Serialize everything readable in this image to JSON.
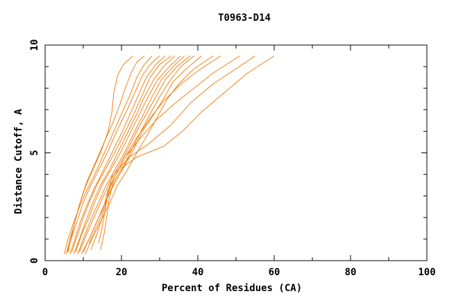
{
  "chart_data": {
    "type": "line",
    "title": "T0963-D14",
    "xlabel": "Percent of Residues (CA)",
    "ylabel": "Distance Cutoff, A",
    "xlim": [
      0,
      100
    ],
    "ylim": [
      0,
      10
    ],
    "x_ticks": [
      0,
      20,
      40,
      60,
      80,
      100
    ],
    "y_ticks": [
      0,
      5,
      10
    ],
    "x_minor_step": 10,
    "y_minor_step": 1,
    "grid": false,
    "legend": "none",
    "line_color": "#ee7600",
    "series": [
      {
        "x": [
          5.0,
          6.0,
          7.5,
          9.0,
          11.0,
          13.0,
          15.5,
          18.0,
          20.5,
          22.5,
          24.0,
          26.0,
          28.0
        ],
        "y": [
          0.3,
          1.0,
          1.8,
          2.5,
          3.3,
          4.0,
          5.0,
          6.0,
          7.0,
          7.8,
          8.5,
          9.1,
          9.5
        ]
      },
      {
        "x": [
          5.8,
          7.0,
          8.5,
          10.0,
          12.0,
          14.0,
          16.5,
          19.0,
          21.5,
          23.5,
          25.5,
          27.5,
          30.0
        ],
        "y": [
          0.4,
          1.1,
          1.9,
          2.7,
          3.5,
          4.2,
          5.1,
          6.1,
          7.0,
          7.8,
          8.6,
          9.1,
          9.5
        ]
      },
      {
        "x": [
          6.5,
          7.8,
          9.2,
          11.0,
          13.0,
          15.0,
          17.5,
          20.0,
          22.5,
          24.5,
          26.5,
          29.0,
          31.5
        ],
        "y": [
          0.3,
          1.0,
          1.8,
          2.6,
          3.4,
          4.1,
          5.0,
          5.9,
          6.9,
          7.7,
          8.5,
          9.1,
          9.5
        ]
      },
      {
        "x": [
          7.0,
          8.5,
          10.0,
          11.8,
          13.8,
          16.0,
          18.5,
          21.0,
          23.5,
          25.5,
          27.5,
          30.0,
          33.0
        ],
        "y": [
          0.4,
          1.2,
          2.0,
          2.8,
          3.6,
          4.3,
          5.1,
          6.0,
          6.9,
          7.7,
          8.5,
          9.1,
          9.5
        ]
      },
      {
        "x": [
          7.5,
          9.0,
          10.8,
          12.5,
          14.5,
          16.8,
          19.0,
          21.5,
          24.0,
          26.0,
          28.5,
          31.0,
          34.0
        ],
        "y": [
          0.3,
          1.0,
          1.9,
          2.7,
          3.5,
          4.2,
          5.0,
          5.9,
          6.8,
          7.6,
          8.4,
          9.0,
          9.5
        ]
      },
      {
        "x": [
          8.0,
          9.5,
          11.5,
          13.2,
          15.2,
          17.5,
          20.0,
          22.5,
          25.0,
          27.0,
          29.5,
          32.5,
          35.5
        ],
        "y": [
          0.4,
          1.2,
          2.0,
          2.8,
          3.6,
          4.3,
          5.1,
          6.0,
          6.9,
          7.6,
          8.4,
          9.0,
          9.5
        ]
      },
      {
        "x": [
          8.5,
          10.2,
          12.0,
          14.0,
          16.0,
          18.2,
          20.8,
          23.2,
          25.8,
          28.0,
          30.5,
          33.5,
          36.5
        ],
        "y": [
          0.3,
          1.1,
          1.9,
          2.7,
          3.5,
          4.2,
          5.0,
          5.9,
          6.8,
          7.6,
          8.4,
          9.0,
          9.5
        ]
      },
      {
        "x": [
          9.0,
          10.8,
          12.8,
          14.8,
          16.8,
          19.0,
          21.5,
          24.0,
          26.5,
          29.0,
          31.5,
          34.5,
          38.0
        ],
        "y": [
          0.4,
          1.2,
          2.0,
          2.8,
          3.6,
          4.3,
          5.1,
          6.0,
          6.8,
          7.6,
          8.4,
          9.0,
          9.5
        ]
      },
      {
        "x": [
          9.5,
          11.5,
          13.5,
          15.5,
          17.5,
          19.8,
          22.2,
          24.8,
          27.5,
          30.0,
          32.5,
          35.5,
          39.0
        ],
        "y": [
          0.3,
          1.0,
          1.8,
          2.6,
          3.4,
          4.1,
          5.0,
          5.9,
          6.8,
          7.6,
          8.3,
          9.0,
          9.5
        ]
      },
      {
        "x": [
          10.0,
          12.0,
          14.0,
          16.0,
          18.2,
          20.5,
          23.0,
          25.5,
          28.5,
          31.0,
          33.5,
          37.0,
          41.0
        ],
        "y": [
          0.4,
          1.2,
          2.0,
          2.8,
          3.6,
          4.3,
          5.1,
          6.0,
          6.8,
          7.5,
          8.3,
          8.9,
          9.5
        ]
      },
      {
        "x": [
          10.5,
          12.5,
          14.8,
          17.0,
          19.0,
          21.5,
          24.0,
          27.0,
          29.5,
          32.0,
          35.0,
          39.0,
          44.0
        ],
        "y": [
          0.3,
          1.1,
          1.9,
          2.7,
          3.5,
          4.2,
          5.0,
          5.9,
          6.7,
          7.5,
          8.2,
          8.9,
          9.5
        ]
      },
      {
        "x": [
          6.0,
          7.0,
          8.2,
          9.5,
          11.0,
          12.8,
          15.0,
          17.5,
          19.5,
          21.0,
          22.5,
          24.0,
          26.0
        ],
        "y": [
          0.4,
          1.2,
          2.1,
          2.9,
          3.7,
          4.4,
          5.3,
          6.3,
          7.2,
          8.0,
          8.7,
          9.2,
          9.5
        ]
      },
      {
        "x": [
          5.5,
          6.5,
          7.8,
          9.0,
          10.5,
          12.2,
          14.5,
          16.5,
          17.5,
          18.0,
          19.0,
          20.5,
          23.0
        ],
        "y": [
          0.3,
          1.0,
          1.8,
          2.6,
          3.4,
          4.1,
          5.0,
          6.0,
          6.9,
          7.8,
          8.6,
          9.1,
          9.5
        ]
      },
      {
        "x": [
          11.5,
          13.0,
          14.5,
          15.5,
          16.5,
          18.5,
          21.0,
          24.0,
          27.5,
          31.0,
          35.0,
          40.0,
          46.0
        ],
        "y": [
          0.8,
          1.4,
          2.0,
          2.6,
          3.3,
          4.0,
          4.8,
          5.7,
          6.6,
          7.4,
          8.1,
          8.8,
          9.5
        ]
      },
      {
        "x": [
          12.0,
          13.5,
          14.8,
          15.8,
          16.8,
          18.5,
          21.0,
          24.5,
          29.0,
          34.0,
          39.0,
          44.0,
          51.0
        ],
        "y": [
          0.5,
          1.2,
          1.9,
          2.6,
          3.3,
          4.0,
          4.8,
          5.6,
          6.5,
          7.3,
          8.0,
          8.7,
          9.5
        ]
      },
      {
        "x": [
          14.0,
          15.0,
          15.8,
          16.5,
          17.5,
          19.5,
          22.0,
          27.0,
          33.0,
          38.0,
          44.0,
          50.0,
          55.0
        ],
        "y": [
          0.8,
          1.6,
          2.4,
          3.2,
          3.9,
          4.3,
          4.8,
          5.4,
          6.3,
          7.3,
          8.2,
          8.9,
          9.5
        ]
      },
      {
        "x": [
          14.5,
          15.5,
          16.2,
          16.8,
          17.8,
          20.0,
          24.0,
          31.0,
          36.0,
          41.0,
          47.0,
          53.0,
          60.0
        ],
        "y": [
          0.5,
          1.3,
          2.1,
          2.9,
          3.6,
          4.3,
          4.8,
          5.3,
          6.0,
          6.9,
          7.8,
          8.7,
          9.5
        ]
      }
    ]
  }
}
